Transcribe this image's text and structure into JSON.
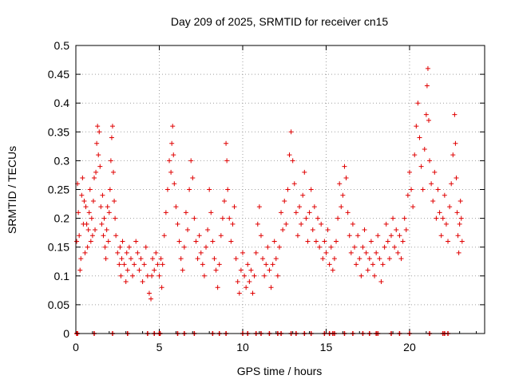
{
  "chart_data": {
    "type": "scatter",
    "title": "Day 209 of 2025, SRMTID for receiver cn15",
    "xlabel": "GPS time / hours",
    "ylabel": "SRMTID / TECUs",
    "xlim": [
      0,
      24.5
    ],
    "ylim": [
      0,
      0.5
    ],
    "xticks": [
      0,
      5,
      10,
      15,
      20
    ],
    "xtick_labels": [
      "0",
      "5",
      "10",
      "15",
      "20"
    ],
    "yticks": [
      0,
      0.05,
      0.1,
      0.15,
      0.2,
      0.25,
      0.3,
      0.35,
      0.4,
      0.45,
      0.5
    ],
    "ytick_labels": [
      "0",
      "0.05",
      "0.1",
      "0.15",
      "0.2",
      "0.25",
      "0.3",
      "0.35",
      "0.4",
      "0.45",
      "0.5"
    ],
    "grid": true,
    "marker": "+",
    "color": "#e00000",
    "series": [
      {
        "name": "SRMTID",
        "points": [
          [
            0.05,
            0.16
          ],
          [
            0.1,
            0.26
          ],
          [
            0.15,
            0.21
          ],
          [
            0.2,
            0.17
          ],
          [
            0.25,
            0.11
          ],
          [
            0.3,
            0.13
          ],
          [
            0.35,
            0.24
          ],
          [
            0.4,
            0.27
          ],
          [
            0.45,
            0.19
          ],
          [
            0.5,
            0.23
          ],
          [
            0.55,
            0.14
          ],
          [
            0.6,
            0.22
          ],
          [
            0.65,
            0.19
          ],
          [
            0.7,
            0.15
          ],
          [
            0.75,
            0.18
          ],
          [
            0.8,
            0.21
          ],
          [
            0.85,
            0.25
          ],
          [
            0.9,
            0.16
          ],
          [
            0.95,
            0.2
          ],
          [
            1.0,
            0.17
          ],
          [
            1.05,
            0.23
          ],
          [
            1.1,
            0.27
          ],
          [
            1.15,
            0.18
          ],
          [
            1.2,
            0.28
          ],
          [
            1.25,
            0.33
          ],
          [
            1.3,
            0.36
          ],
          [
            1.35,
            0.31
          ],
          [
            1.4,
            0.35
          ],
          [
            1.45,
            0.29
          ],
          [
            1.5,
            0.22
          ],
          [
            1.55,
            0.19
          ],
          [
            1.6,
            0.24
          ],
          [
            1.65,
            0.17
          ],
          [
            1.7,
            0.2
          ],
          [
            1.75,
            0.15
          ],
          [
            1.8,
            0.13
          ],
          [
            1.85,
            0.18
          ],
          [
            1.9,
            0.22
          ],
          [
            1.95,
            0.16
          ],
          [
            2.0,
            0.21
          ],
          [
            2.05,
            0.25
          ],
          [
            2.1,
            0.3
          ],
          [
            2.15,
            0.34
          ],
          [
            2.2,
            0.36
          ],
          [
            2.25,
            0.28
          ],
          [
            2.3,
            0.23
          ],
          [
            2.35,
            0.2
          ],
          [
            2.4,
            0.17
          ],
          [
            2.5,
            0.14
          ],
          [
            2.6,
            0.12
          ],
          [
            2.65,
            0.15
          ],
          [
            2.7,
            0.1
          ],
          [
            2.75,
            0.13
          ],
          [
            2.8,
            0.16
          ],
          [
            2.9,
            0.12
          ],
          [
            3.0,
            0.09
          ],
          [
            3.05,
            0.14
          ],
          [
            3.1,
            0.11
          ],
          [
            3.2,
            0.15
          ],
          [
            3.3,
            0.13
          ],
          [
            3.4,
            0.1
          ],
          [
            3.5,
            0.12
          ],
          [
            3.6,
            0.16
          ],
          [
            3.7,
            0.14
          ],
          [
            3.8,
            0.11
          ],
          [
            3.9,
            0.13
          ],
          [
            4.0,
            0.09
          ],
          [
            4.1,
            0.12
          ],
          [
            4.2,
            0.15
          ],
          [
            4.3,
            0.1
          ],
          [
            4.4,
            0.07
          ],
          [
            4.5,
            0.06
          ],
          [
            4.55,
            0.1
          ],
          [
            4.6,
            0.13
          ],
          [
            4.7,
            0.11
          ],
          [
            4.8,
            0.14
          ],
          [
            4.9,
            0.12
          ],
          [
            5.0,
            0.1
          ],
          [
            5.1,
            0.13
          ],
          [
            5.15,
            0.08
          ],
          [
            5.2,
            0.12
          ],
          [
            5.3,
            0.17
          ],
          [
            5.4,
            0.21
          ],
          [
            5.5,
            0.25
          ],
          [
            5.6,
            0.3
          ],
          [
            5.7,
            0.28
          ],
          [
            5.75,
            0.33
          ],
          [
            5.8,
            0.36
          ],
          [
            5.85,
            0.31
          ],
          [
            5.9,
            0.26
          ],
          [
            6.0,
            0.22
          ],
          [
            6.1,
            0.19
          ],
          [
            6.2,
            0.16
          ],
          [
            6.3,
            0.13
          ],
          [
            6.4,
            0.11
          ],
          [
            6.5,
            0.15
          ],
          [
            6.6,
            0.21
          ],
          [
            6.7,
            0.18
          ],
          [
            6.8,
            0.25
          ],
          [
            6.9,
            0.3
          ],
          [
            7.0,
            0.27
          ],
          [
            7.1,
            0.2
          ],
          [
            7.2,
            0.16
          ],
          [
            7.3,
            0.13
          ],
          [
            7.4,
            0.17
          ],
          [
            7.5,
            0.14
          ],
          [
            7.6,
            0.12
          ],
          [
            7.7,
            0.1
          ],
          [
            7.8,
            0.15
          ],
          [
            7.9,
            0.18
          ],
          [
            8.0,
            0.25
          ],
          [
            8.1,
            0.21
          ],
          [
            8.2,
            0.16
          ],
          [
            8.3,
            0.13
          ],
          [
            8.4,
            0.11
          ],
          [
            8.5,
            0.08
          ],
          [
            8.6,
            0.12
          ],
          [
            8.7,
            0.17
          ],
          [
            8.8,
            0.2
          ],
          [
            8.9,
            0.23
          ],
          [
            9.0,
            0.33
          ],
          [
            9.05,
            0.3
          ],
          [
            9.1,
            0.25
          ],
          [
            9.2,
            0.2
          ],
          [
            9.3,
            0.16
          ],
          [
            9.4,
            0.19
          ],
          [
            9.5,
            0.22
          ],
          [
            9.6,
            0.13
          ],
          [
            9.7,
            0.09
          ],
          [
            9.8,
            0.07
          ],
          [
            9.9,
            0.11
          ],
          [
            10.0,
            0.14
          ],
          [
            10.1,
            0.1
          ],
          [
            10.2,
            0.08
          ],
          [
            10.3,
            0.12
          ],
          [
            10.4,
            0.09
          ],
          [
            10.5,
            0.11
          ],
          [
            10.6,
            0.07
          ],
          [
            10.7,
            0.1
          ],
          [
            10.8,
            0.14
          ],
          [
            10.9,
            0.19
          ],
          [
            11.0,
            0.22
          ],
          [
            11.1,
            0.17
          ],
          [
            11.2,
            0.13
          ],
          [
            11.3,
            0.1
          ],
          [
            11.4,
            0.12
          ],
          [
            11.5,
            0.15
          ],
          [
            11.6,
            0.11
          ],
          [
            11.7,
            0.08
          ],
          [
            11.8,
            0.12
          ],
          [
            11.9,
            0.16
          ],
          [
            12.0,
            0.13
          ],
          [
            12.1,
            0.1
          ],
          [
            12.2,
            0.15
          ],
          [
            12.3,
            0.21
          ],
          [
            12.4,
            0.18
          ],
          [
            12.5,
            0.23
          ],
          [
            12.6,
            0.19
          ],
          [
            12.7,
            0.25
          ],
          [
            12.8,
            0.31
          ],
          [
            12.9,
            0.35
          ],
          [
            13.0,
            0.3
          ],
          [
            13.1,
            0.26
          ],
          [
            13.2,
            0.21
          ],
          [
            13.3,
            0.17
          ],
          [
            13.4,
            0.22
          ],
          [
            13.5,
            0.19
          ],
          [
            13.6,
            0.24
          ],
          [
            13.7,
            0.28
          ],
          [
            13.8,
            0.2
          ],
          [
            13.9,
            0.16
          ],
          [
            14.0,
            0.21
          ],
          [
            14.1,
            0.25
          ],
          [
            14.2,
            0.18
          ],
          [
            14.3,
            0.22
          ],
          [
            14.4,
            0.16
          ],
          [
            14.5,
            0.2
          ],
          [
            14.6,
            0.15
          ],
          [
            14.7,
            0.19
          ],
          [
            14.8,
            0.13
          ],
          [
            14.9,
            0.16
          ],
          [
            15.0,
            0.14
          ],
          [
            15.1,
            0.18
          ],
          [
            15.2,
            0.12
          ],
          [
            15.3,
            0.15
          ],
          [
            15.4,
            0.11
          ],
          [
            15.5,
            0.13
          ],
          [
            15.6,
            0.16
          ],
          [
            15.7,
            0.2
          ],
          [
            15.8,
            0.26
          ],
          [
            15.9,
            0.22
          ],
          [
            16.0,
            0.24
          ],
          [
            16.1,
            0.29
          ],
          [
            16.2,
            0.27
          ],
          [
            16.3,
            0.21
          ],
          [
            16.4,
            0.17
          ],
          [
            16.5,
            0.14
          ],
          [
            16.6,
            0.19
          ],
          [
            16.7,
            0.15
          ],
          [
            16.8,
            0.12
          ],
          [
            16.9,
            0.17
          ],
          [
            17.0,
            0.13
          ],
          [
            17.1,
            0.1
          ],
          [
            17.2,
            0.15
          ],
          [
            17.3,
            0.18
          ],
          [
            17.4,
            0.14
          ],
          [
            17.5,
            0.11
          ],
          [
            17.6,
            0.13
          ],
          [
            17.7,
            0.16
          ],
          [
            17.8,
            0.12
          ],
          [
            17.9,
            0.1
          ],
          [
            18.0,
            0.14
          ],
          [
            18.1,
            0.17
          ],
          [
            18.2,
            0.13
          ],
          [
            18.3,
            0.09
          ],
          [
            18.4,
            0.12
          ],
          [
            18.5,
            0.15
          ],
          [
            18.6,
            0.19
          ],
          [
            18.7,
            0.16
          ],
          [
            18.8,
            0.13
          ],
          [
            18.9,
            0.17
          ],
          [
            19.0,
            0.2
          ],
          [
            19.1,
            0.15
          ],
          [
            19.2,
            0.18
          ],
          [
            19.3,
            0.14
          ],
          [
            19.4,
            0.17
          ],
          [
            19.5,
            0.13
          ],
          [
            19.6,
            0.16
          ],
          [
            19.7,
            0.2
          ],
          [
            19.8,
            0.18
          ],
          [
            19.9,
            0.24
          ],
          [
            20.0,
            0.28
          ],
          [
            20.1,
            0.25
          ],
          [
            20.2,
            0.22
          ],
          [
            20.3,
            0.31
          ],
          [
            20.4,
            0.36
          ],
          [
            20.5,
            0.4
          ],
          [
            20.6,
            0.34
          ],
          [
            20.7,
            0.29
          ],
          [
            20.8,
            0.25
          ],
          [
            20.9,
            0.32
          ],
          [
            21.0,
            0.38
          ],
          [
            21.05,
            0.43
          ],
          [
            21.1,
            0.46
          ],
          [
            21.15,
            0.37
          ],
          [
            21.2,
            0.3
          ],
          [
            21.3,
            0.26
          ],
          [
            21.4,
            0.23
          ],
          [
            21.5,
            0.28
          ],
          [
            21.6,
            0.2
          ],
          [
            21.7,
            0.25
          ],
          [
            21.8,
            0.21
          ],
          [
            21.9,
            0.17
          ],
          [
            22.0,
            0.2
          ],
          [
            22.1,
            0.24
          ],
          [
            22.2,
            0.19
          ],
          [
            22.3,
            0.16
          ],
          [
            22.4,
            0.22
          ],
          [
            22.5,
            0.26
          ],
          [
            22.6,
            0.31
          ],
          [
            22.7,
            0.38
          ],
          [
            22.75,
            0.33
          ],
          [
            22.8,
            0.27
          ],
          [
            22.85,
            0.21
          ],
          [
            22.9,
            0.17
          ],
          [
            22.95,
            0.14
          ],
          [
            23.0,
            0.19
          ],
          [
            23.05,
            0.23
          ],
          [
            23.1,
            0.2
          ],
          [
            23.15,
            0.16
          ]
        ]
      }
    ],
    "zero_x": [
      0.05,
      0.1,
      1.1,
      2.2,
      3.1,
      4.3,
      4.7,
      5.0,
      5.05,
      6.1,
      6.5,
      7.1,
      8.2,
      8.6,
      9.0,
      10.0,
      10.3,
      10.8,
      11.1,
      11.6,
      12.1,
      12.3,
      12.9,
      13.2,
      13.7,
      14.1,
      14.9,
      15.2,
      15.4,
      15.5,
      16.1,
      16.6,
      17.2,
      17.6,
      18.0,
      18.1,
      18.9,
      19.4,
      20.0,
      21.2,
      22.0,
      22.1,
      22.3
    ]
  }
}
